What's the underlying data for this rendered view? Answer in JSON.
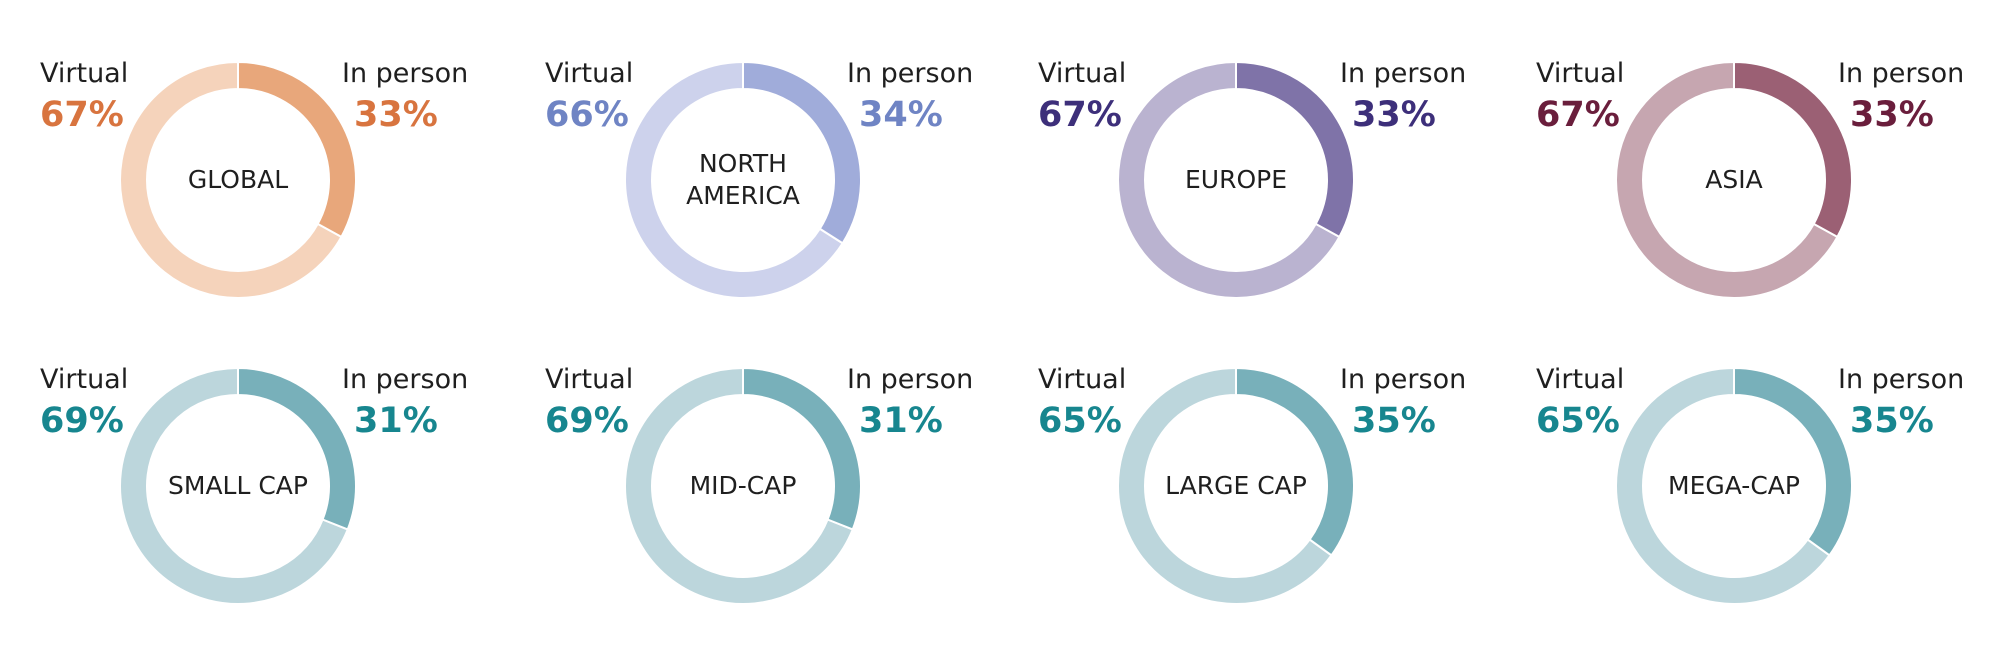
{
  "chart_data": [
    {
      "type": "pie",
      "center_label": "GLOBAL",
      "labels": [
        "Virtual",
        "In person"
      ],
      "values": [
        67,
        33
      ],
      "value_labels": [
        "67%",
        "33%"
      ],
      "colors": {
        "virtual": "#f5d3bb",
        "in_person": "#e8a77b",
        "text": "#d8743f"
      }
    },
    {
      "type": "pie",
      "center_label": "NORTH\nAMERICA",
      "labels": [
        "Virtual",
        "In person"
      ],
      "values": [
        66,
        34
      ],
      "value_labels": [
        "66%",
        "34%"
      ],
      "colors": {
        "virtual": "#cdd2ec",
        "in_person": "#a0acda",
        "text": "#6f84c4"
      }
    },
    {
      "type": "pie",
      "center_label": "EUROPE",
      "labels": [
        "Virtual",
        "In person"
      ],
      "values": [
        67,
        33
      ],
      "value_labels": [
        "67%",
        "33%"
      ],
      "colors": {
        "virtual": "#bab3d0",
        "in_person": "#7f73a8",
        "text": "#3d2f7a"
      }
    },
    {
      "type": "pie",
      "center_label": "ASIA",
      "labels": [
        "Virtual",
        "In person"
      ],
      "values": [
        67,
        33
      ],
      "value_labels": [
        "67%",
        "33%"
      ],
      "colors": {
        "virtual": "#c6a6b0",
        "in_person": "#9b6074",
        "text": "#6a1e3c"
      }
    },
    {
      "type": "pie",
      "center_label": "SMALL CAP",
      "labels": [
        "Virtual",
        "In person"
      ],
      "values": [
        69,
        31
      ],
      "value_labels": [
        "69%",
        "31%"
      ],
      "colors": {
        "virtual": "#bcd6dc",
        "in_person": "#78b0ba",
        "text": "#17868f"
      }
    },
    {
      "type": "pie",
      "center_label": "MID-CAP",
      "labels": [
        "Virtual",
        "In person"
      ],
      "values": [
        69,
        31
      ],
      "value_labels": [
        "69%",
        "31%"
      ],
      "colors": {
        "virtual": "#bcd6dc",
        "in_person": "#78b0ba",
        "text": "#17868f"
      }
    },
    {
      "type": "pie",
      "center_label": "LARGE CAP",
      "labels": [
        "Virtual",
        "In person"
      ],
      "values": [
        65,
        35
      ],
      "value_labels": [
        "65%",
        "35%"
      ],
      "colors": {
        "virtual": "#bcd6dc",
        "in_person": "#78b0ba",
        "text": "#17868f"
      }
    },
    {
      "type": "pie",
      "center_label": "MEGA-CAP",
      "labels": [
        "Virtual",
        "In person"
      ],
      "values": [
        65,
        35
      ],
      "value_labels": [
        "65%",
        "35%"
      ],
      "colors": {
        "virtual": "#bcd6dc",
        "in_person": "#78b0ba",
        "text": "#17868f"
      }
    }
  ]
}
